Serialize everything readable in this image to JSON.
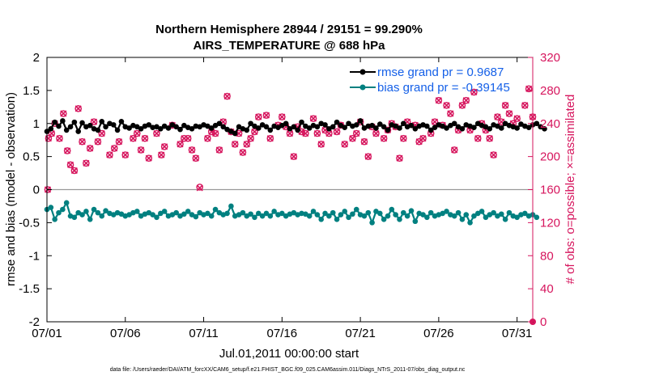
{
  "chart_data": {
    "type": "line",
    "title": "Northern Hemisphere 28944 / 29151 = 99.290%",
    "subtitle": "AIRS_TEMPERATURE @ 688 hPa",
    "xlabel": "Jul.01,2011 00:00:00 start",
    "ylabel": "rmse and bias (model - observation)",
    "ylabel_right": "# of obs: o=possible; ×=assimilated",
    "xlim": [
      0,
      31
    ],
    "ylim": [
      -2,
      2
    ],
    "ylim_right": [
      0,
      320
    ],
    "x_ticks": [
      0,
      5,
      10,
      15,
      20,
      25,
      30
    ],
    "x_tick_labels": [
      "07/01",
      "07/06",
      "07/11",
      "07/16",
      "07/21",
      "07/26",
      "07/31"
    ],
    "y_ticks": [
      -2,
      -1.5,
      -1,
      -0.5,
      0,
      0.5,
      1,
      1.5,
      2
    ],
    "y_tick_labels": [
      "-2",
      "-1.5",
      "-1",
      "-0.5",
      "0",
      "0.5",
      "1",
      "1.5",
      "2"
    ],
    "y_right_ticks": [
      0,
      40,
      80,
      120,
      160,
      200,
      240,
      280,
      320
    ],
    "y_right_tick_labels": [
      "0",
      "40",
      "80",
      "120",
      "160",
      "200",
      "240",
      "280",
      "320"
    ],
    "legend": [
      "rmse grand pr = 0.9687",
      "bias grand pr = -0.39145"
    ],
    "footer": "data file: /Users/raeder/DAI/ATM_forcXX/CAM6_setup/f.e21.FHIST_BGC.f09_025.CAM6assim.011/Diags_NTrS_2011-07/obs_diag_output.nc",
    "colors": {
      "rmse": "#000000",
      "bias": "#008080",
      "obs": "#d6155d",
      "legend_text": "#1560e8",
      "zero_line": "#999999"
    },
    "series": [
      {
        "name": "rmse",
        "axis": "left",
        "x_start": 0,
        "dx": 0.25,
        "values": [
          0.88,
          0.92,
          1.02,
          0.96,
          1.04,
          0.9,
          0.95,
          1.02,
          0.88,
          1.01,
          0.95,
          0.97,
          0.92,
          0.9,
          1.03,
          0.95,
          1.0,
          0.98,
          0.9,
          1.03,
          0.95,
          0.93,
          0.97,
          0.95,
          0.92,
          0.96,
          0.98,
          0.94,
          0.95,
          0.92,
          0.96,
          0.93,
          0.98,
          0.95,
          0.91,
          0.97,
          0.94,
          0.92,
          0.96,
          0.95,
          0.98,
          0.96,
          0.93,
          0.97,
          1.0,
          0.95,
          0.91,
          0.88,
          0.85,
          0.95,
          0.92,
          0.9,
          1.0,
          0.96,
          0.93,
          0.98,
          0.95,
          0.9,
          0.96,
          0.94,
          0.97,
          1.0,
          0.92,
          0.95,
          0.9,
          1.02,
          0.96,
          0.93,
          0.97,
          0.95,
          1.0,
          0.98,
          0.92,
          0.95,
          1.02,
          0.97,
          0.94,
          1.0,
          0.96,
          0.98,
          1.04,
          0.93,
          0.96,
          0.97,
          0.93,
          0.99,
          0.95,
          0.9,
          0.98,
          0.96,
          0.93,
          1.0,
          0.95,
          0.97,
          0.92,
          0.96,
          0.98,
          0.96,
          0.9,
          0.94,
          0.98,
          0.96,
          0.93,
          0.97,
          1.0,
          0.95,
          0.92,
          0.98,
          0.96,
          0.94,
          1.0,
          0.97,
          0.95,
          0.92,
          0.98,
          0.96,
          0.93,
          1.0,
          0.97,
          0.95,
          0.93,
          0.99,
          0.96,
          0.94,
          0.98,
          1.0,
          0.95,
          0.92
        ]
      },
      {
        "name": "bias",
        "axis": "left",
        "x_start": 0,
        "dx": 0.25,
        "values": [
          -0.3,
          -0.27,
          -0.45,
          -0.35,
          -0.3,
          -0.2,
          -0.4,
          -0.42,
          -0.35,
          -0.38,
          -0.33,
          -0.45,
          -0.3,
          -0.35,
          -0.4,
          -0.32,
          -0.36,
          -0.38,
          -0.35,
          -0.37,
          -0.4,
          -0.38,
          -0.35,
          -0.33,
          -0.4,
          -0.37,
          -0.35,
          -0.38,
          -0.42,
          -0.36,
          -0.33,
          -0.4,
          -0.38,
          -0.35,
          -0.4,
          -0.37,
          -0.33,
          -0.38,
          -0.41,
          -0.35,
          -0.38,
          -0.36,
          -0.4,
          -0.3,
          -0.35,
          -0.38,
          -0.36,
          -0.25,
          -0.4,
          -0.38,
          -0.35,
          -0.4,
          -0.37,
          -0.42,
          -0.36,
          -0.4,
          -0.36,
          -0.4,
          -0.33,
          -0.38,
          -0.36,
          -0.4,
          -0.37,
          -0.35,
          -0.38,
          -0.36,
          -0.37,
          -0.4,
          -0.33,
          -0.38,
          -0.45,
          -0.36,
          -0.4,
          -0.35,
          -0.45,
          -0.38,
          -0.33,
          -0.42,
          -0.37,
          -0.3,
          -0.38,
          -0.4,
          -0.35,
          -0.5,
          -0.33,
          -0.36,
          -0.45,
          -0.4,
          -0.3,
          -0.38,
          -0.45,
          -0.35,
          -0.4,
          -0.32,
          -0.48,
          -0.36,
          -0.38,
          -0.42,
          -0.35,
          -0.4,
          -0.38,
          -0.36,
          -0.33,
          -0.38,
          -0.4,
          -0.35,
          -0.45,
          -0.38,
          -0.5,
          -0.4,
          -0.36,
          -0.33,
          -0.42,
          -0.38,
          -0.35,
          -0.4,
          -0.37,
          -0.45,
          -0.35,
          -0.4,
          -0.42,
          -0.38,
          -0.36,
          -0.4,
          -0.38,
          -0.42
        ]
      },
      {
        "name": "obs_possible",
        "axis": "right",
        "marker": "o",
        "points": [
          [
            0.05,
            160
          ],
          [
            0.1,
            222
          ],
          [
            0.3,
            228
          ],
          [
            0.5,
            240
          ],
          [
            0.8,
            222
          ],
          [
            1.05,
            252
          ],
          [
            1.3,
            207
          ],
          [
            1.5,
            190
          ],
          [
            1.75,
            183
          ],
          [
            2,
            258
          ],
          [
            2.25,
            218
          ],
          [
            2.5,
            192
          ],
          [
            2.75,
            210
          ],
          [
            3,
            242
          ],
          [
            3.25,
            218
          ],
          [
            3.5,
            228
          ],
          [
            4,
            202
          ],
          [
            4.3,
            210
          ],
          [
            4.6,
            218
          ],
          [
            5,
            202
          ],
          [
            5.5,
            222
          ],
          [
            5.75,
            228
          ],
          [
            6,
            208
          ],
          [
            6.25,
            222
          ],
          [
            6.5,
            198
          ],
          [
            7,
            228
          ],
          [
            7.3,
            202
          ],
          [
            7.5,
            212
          ],
          [
            8,
            238
          ],
          [
            8.5,
            215
          ],
          [
            8.75,
            222
          ],
          [
            9,
            222
          ],
          [
            9.25,
            208
          ],
          [
            9.5,
            198
          ],
          [
            9.75,
            163
          ],
          [
            10.25,
            222
          ],
          [
            10.5,
            230
          ],
          [
            10.75,
            228
          ],
          [
            11,
            208
          ],
          [
            11.25,
            242
          ],
          [
            11.5,
            273
          ],
          [
            11.75,
            230
          ],
          [
            12,
            215
          ],
          [
            12.25,
            228
          ],
          [
            12.5,
            205
          ],
          [
            12.75,
            215
          ],
          [
            13,
            222
          ],
          [
            13.25,
            230
          ],
          [
            13.5,
            248
          ],
          [
            14,
            250
          ],
          [
            14.25,
            222
          ],
          [
            14.75,
            238
          ],
          [
            15,
            248
          ],
          [
            15.25,
            236
          ],
          [
            15.5,
            228
          ],
          [
            15.75,
            200
          ],
          [
            16,
            236
          ],
          [
            16.25,
            230
          ],
          [
            16.5,
            228
          ],
          [
            17,
            246
          ],
          [
            17.25,
            228
          ],
          [
            17.5,
            215
          ],
          [
            17.75,
            232
          ],
          [
            18,
            228
          ],
          [
            18.5,
            230
          ],
          [
            18.75,
            238
          ],
          [
            19,
            215
          ],
          [
            19.5,
            222
          ],
          [
            19.75,
            228
          ],
          [
            20,
            242
          ],
          [
            20.25,
            218
          ],
          [
            20.5,
            200
          ],
          [
            20.75,
            236
          ],
          [
            21,
            228
          ],
          [
            21.5,
            222
          ],
          [
            21.75,
            232
          ],
          [
            22,
            240
          ],
          [
            22.25,
            236
          ],
          [
            22.5,
            198
          ],
          [
            22.75,
            222
          ],
          [
            23,
            242
          ],
          [
            23.5,
            238
          ],
          [
            23.75,
            218
          ],
          [
            24,
            222
          ],
          [
            24.5,
            228
          ],
          [
            24.75,
            242
          ],
          [
            25,
            268
          ],
          [
            25.25,
            238
          ],
          [
            25.5,
            262
          ],
          [
            25.75,
            252
          ],
          [
            26,
            208
          ],
          [
            26.25,
            232
          ],
          [
            26.5,
            262
          ],
          [
            26.75,
            268
          ],
          [
            27,
            232
          ],
          [
            27.25,
            278
          ],
          [
            27.5,
            222
          ],
          [
            27.75,
            240
          ],
          [
            28,
            232
          ],
          [
            28.25,
            222
          ],
          [
            28.5,
            202
          ],
          [
            28.75,
            248
          ],
          [
            29,
            242
          ],
          [
            29.25,
            262
          ],
          [
            29.5,
            252
          ],
          [
            29.75,
            240
          ],
          [
            30,
            246
          ],
          [
            30.5,
            262
          ],
          [
            30.75,
            282
          ],
          [
            31,
            248
          ],
          [
            31.25,
            238
          ]
        ]
      },
      {
        "name": "obs_assimilated",
        "axis": "right",
        "marker": "x",
        "points": [
          [
            0.05,
            160
          ],
          [
            0.1,
            222
          ],
          [
            0.3,
            228
          ],
          [
            0.5,
            240
          ],
          [
            0.8,
            222
          ],
          [
            1.05,
            252
          ],
          [
            1.3,
            207
          ],
          [
            1.5,
            190
          ],
          [
            1.75,
            183
          ],
          [
            2,
            258
          ],
          [
            2.25,
            218
          ],
          [
            2.5,
            192
          ],
          [
            2.75,
            210
          ],
          [
            3,
            242
          ],
          [
            3.25,
            218
          ],
          [
            3.5,
            228
          ],
          [
            4,
            202
          ],
          [
            4.3,
            210
          ],
          [
            4.6,
            218
          ],
          [
            5,
            202
          ],
          [
            5.5,
            222
          ],
          [
            5.75,
            228
          ],
          [
            6,
            208
          ],
          [
            6.25,
            222
          ],
          [
            6.5,
            198
          ],
          [
            7,
            228
          ],
          [
            7.3,
            202
          ],
          [
            7.5,
            212
          ],
          [
            8,
            238
          ],
          [
            8.5,
            215
          ],
          [
            8.75,
            222
          ],
          [
            9,
            222
          ],
          [
            9.25,
            208
          ],
          [
            9.5,
            198
          ],
          [
            9.75,
            162
          ],
          [
            10.25,
            222
          ],
          [
            10.5,
            230
          ],
          [
            10.75,
            228
          ],
          [
            11,
            208
          ],
          [
            11.25,
            242
          ],
          [
            11.5,
            273
          ],
          [
            11.75,
            230
          ],
          [
            12,
            215
          ],
          [
            12.25,
            228
          ],
          [
            12.5,
            205
          ],
          [
            12.75,
            215
          ],
          [
            13,
            222
          ],
          [
            13.25,
            230
          ],
          [
            13.5,
            248
          ],
          [
            14,
            250
          ],
          [
            14.25,
            222
          ],
          [
            14.75,
            238
          ],
          [
            15,
            248
          ],
          [
            15.25,
            236
          ],
          [
            15.5,
            228
          ],
          [
            15.75,
            200
          ],
          [
            16,
            236
          ],
          [
            16.25,
            230
          ],
          [
            16.5,
            228
          ],
          [
            17,
            246
          ],
          [
            17.25,
            228
          ],
          [
            17.5,
            215
          ],
          [
            17.75,
            232
          ],
          [
            18,
            228
          ],
          [
            18.5,
            230
          ],
          [
            18.75,
            238
          ],
          [
            19,
            215
          ],
          [
            19.5,
            222
          ],
          [
            19.75,
            228
          ],
          [
            20,
            242
          ],
          [
            20.25,
            218
          ],
          [
            20.5,
            200
          ],
          [
            20.75,
            236
          ],
          [
            21,
            228
          ],
          [
            21.5,
            222
          ],
          [
            21.75,
            232
          ],
          [
            22,
            240
          ],
          [
            22.25,
            236
          ],
          [
            22.5,
            198
          ],
          [
            22.75,
            222
          ],
          [
            23,
            242
          ],
          [
            23.5,
            238
          ],
          [
            23.75,
            218
          ],
          [
            24,
            222
          ],
          [
            24.5,
            228
          ],
          [
            24.75,
            242
          ],
          [
            25,
            268
          ],
          [
            25.25,
            238
          ],
          [
            25.5,
            262
          ],
          [
            25.75,
            252
          ],
          [
            26,
            208
          ],
          [
            26.25,
            232
          ],
          [
            26.5,
            262
          ],
          [
            26.75,
            268
          ],
          [
            27,
            232
          ],
          [
            27.25,
            278
          ],
          [
            27.5,
            222
          ],
          [
            27.75,
            240
          ],
          [
            28,
            232
          ],
          [
            28.25,
            222
          ],
          [
            28.5,
            202
          ],
          [
            28.75,
            248
          ],
          [
            29,
            242
          ],
          [
            29.25,
            262
          ],
          [
            29.5,
            252
          ],
          [
            29.75,
            240
          ],
          [
            30,
            246
          ],
          [
            30.5,
            262
          ],
          [
            30.75,
            282
          ],
          [
            31,
            248
          ],
          [
            31.25,
            238
          ]
        ]
      }
    ]
  }
}
